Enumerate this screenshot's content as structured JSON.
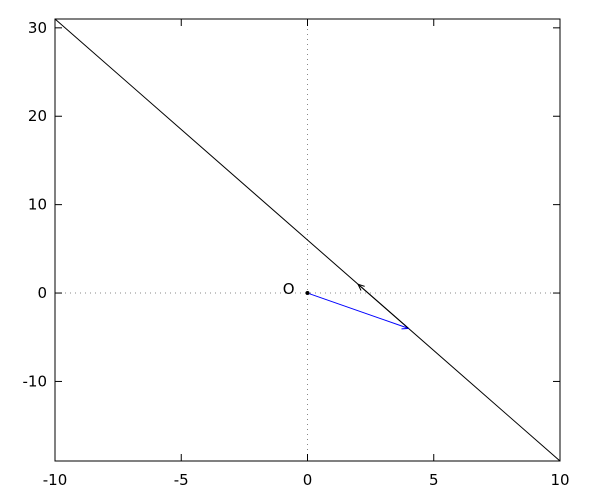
{
  "chart_data": {
    "type": "line",
    "title": "",
    "xlabel": "",
    "ylabel": "",
    "xlim": [
      -10,
      10
    ],
    "ylim": [
      -19,
      31
    ],
    "xticks": [
      -10,
      -5,
      0,
      5,
      10
    ],
    "yticks": [
      -10,
      0,
      10,
      20,
      30
    ],
    "zero_axes": "dotted",
    "grid": false,
    "series": [
      {
        "points": [
          [
            -10,
            31
          ],
          [
            10,
            -19
          ]
        ],
        "color": "#000000"
      }
    ],
    "arrows": [
      {
        "from": [
          0,
          0
        ],
        "to": [
          4,
          -4
        ],
        "color": "#0000ff"
      },
      {
        "from": [
          4,
          -4
        ],
        "to": [
          2,
          1
        ],
        "color": "#000000"
      }
    ],
    "points": [
      {
        "x": 0,
        "y": 0,
        "label": "O",
        "color": "#000000"
      }
    ]
  }
}
